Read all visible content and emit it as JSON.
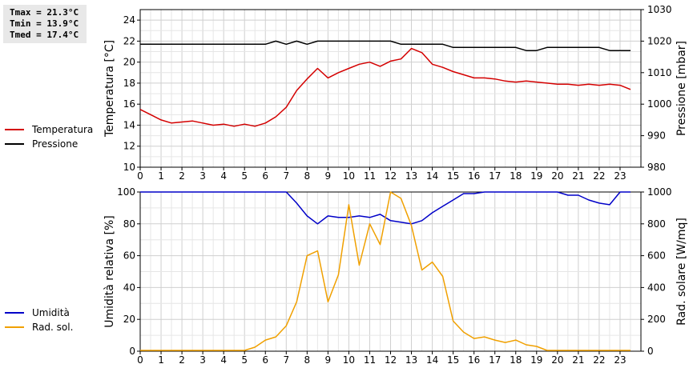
{
  "stats": {
    "tmax": "Tmax = 21.3°C",
    "tmin": "Tmin = 13.9°C",
    "tmed": "Tmed = 17.4°C"
  },
  "legend_top": [
    {
      "label": "Temperatura",
      "color": "#d40000"
    },
    {
      "label": "Pressione",
      "color": "#000000"
    }
  ],
  "legend_bottom": [
    {
      "label": "Umidità",
      "color": "#0000c8"
    },
    {
      "label": "Rad. sol.",
      "color": "#f0a000"
    }
  ],
  "chart_data": [
    {
      "type": "line",
      "x_ticks": [
        0,
        1,
        2,
        3,
        4,
        5,
        6,
        7,
        8,
        9,
        10,
        11,
        12,
        13,
        14,
        15,
        16,
        17,
        18,
        19,
        20,
        21,
        22,
        23
      ],
      "xlim": [
        0,
        24
      ],
      "grid": true,
      "ylabel_left": "Temperatura [°C]",
      "ylim_left": [
        10,
        25
      ],
      "yticks_left": [
        10,
        12,
        14,
        16,
        18,
        20,
        22,
        24
      ],
      "ylabel_right": "Pressione [mbar]",
      "ylim_right": [
        980,
        1030
      ],
      "yticks_right": [
        980,
        990,
        1000,
        1010,
        1020,
        1030
      ],
      "series": [
        {
          "name": "Temperatura",
          "axis": "left",
          "color": "#d40000",
          "x": [
            0,
            0.5,
            1,
            1.5,
            2,
            2.5,
            3,
            3.5,
            4,
            4.5,
            5,
            5.5,
            6,
            6.5,
            7,
            7.5,
            8,
            8.5,
            9,
            9.5,
            10,
            10.5,
            11,
            11.5,
            12,
            12.5,
            13,
            13.5,
            14,
            14.5,
            15,
            15.5,
            16,
            16.5,
            17,
            17.5,
            18,
            18.5,
            19,
            19.5,
            20,
            20.5,
            21,
            21.5,
            22,
            22.5,
            23,
            23.5
          ],
          "values": [
            15.5,
            15.0,
            14.5,
            14.2,
            14.3,
            14.4,
            14.2,
            14.0,
            14.1,
            13.9,
            14.1,
            13.9,
            14.2,
            14.8,
            15.7,
            17.3,
            18.4,
            19.4,
            18.5,
            19.0,
            19.4,
            19.8,
            20.0,
            19.6,
            20.1,
            20.3,
            21.3,
            20.9,
            19.8,
            19.5,
            19.1,
            18.8,
            18.5,
            18.5,
            18.4,
            18.2,
            18.1,
            18.2,
            18.1,
            18.0,
            17.9,
            17.9,
            17.8,
            17.9,
            17.8,
            17.9,
            17.8,
            17.4
          ]
        },
        {
          "name": "Pressione",
          "axis": "right",
          "color": "#000000",
          "x": [
            0,
            6,
            6.5,
            7,
            7.5,
            8,
            8.5,
            9,
            12,
            12.5,
            14.5,
            15,
            18,
            18.5,
            19,
            19.5,
            22,
            22.5,
            23.5
          ],
          "values": [
            1019,
            1019,
            1020,
            1019,
            1020,
            1019,
            1020,
            1020,
            1020,
            1019,
            1019,
            1018,
            1018,
            1017,
            1017,
            1018,
            1018,
            1017,
            1017
          ]
        }
      ]
    },
    {
      "type": "line",
      "x_ticks": [
        0,
        1,
        2,
        3,
        4,
        5,
        6,
        7,
        8,
        9,
        10,
        11,
        12,
        13,
        14,
        15,
        16,
        17,
        18,
        19,
        20,
        21,
        22,
        23
      ],
      "xlim": [
        0,
        24
      ],
      "grid": true,
      "ylabel_left": "Umidità relativa [%]",
      "ylim_left": [
        0,
        100
      ],
      "yticks_left": [
        0,
        20,
        40,
        60,
        80,
        100
      ],
      "ylabel_right": "Rad. solare [W/mq]",
      "ylim_right": [
        0,
        1000
      ],
      "yticks_right": [
        0,
        200,
        400,
        600,
        800,
        1000
      ],
      "series": [
        {
          "name": "Umidità",
          "axis": "left",
          "color": "#0000c8",
          "x": [
            0,
            7,
            7.5,
            8,
            8.5,
            9,
            9.5,
            10,
            10.5,
            11,
            11.5,
            12,
            12.5,
            13,
            13.5,
            14,
            14.5,
            15,
            15.5,
            16,
            16.5,
            20,
            20.5,
            21,
            21.5,
            22,
            22.5,
            23,
            23.5
          ],
          "values": [
            100,
            100,
            93,
            85,
            80,
            85,
            84,
            84,
            85,
            84,
            86,
            82,
            81,
            80,
            82,
            87,
            91,
            95,
            99,
            99,
            100,
            100,
            98,
            98,
            95,
            93,
            92,
            100,
            100
          ]
        },
        {
          "name": "Rad. sol.",
          "axis": "right",
          "color": "#f0a000",
          "x": [
            0,
            5,
            5.5,
            6,
            6.5,
            7,
            7.5,
            8,
            8.5,
            9,
            9.5,
            10,
            10.5,
            11,
            11.5,
            12,
            12.5,
            13,
            13.5,
            14,
            14.5,
            15,
            15.5,
            16,
            16.5,
            17,
            17.5,
            18,
            18.5,
            19,
            19.5,
            20,
            23.5
          ],
          "values": [
            5,
            5,
            25,
            70,
            90,
            160,
            310,
            600,
            630,
            310,
            480,
            920,
            540,
            800,
            670,
            1000,
            960,
            790,
            510,
            560,
            470,
            190,
            120,
            80,
            90,
            70,
            55,
            70,
            40,
            30,
            5,
            5,
            5
          ]
        }
      ]
    }
  ]
}
